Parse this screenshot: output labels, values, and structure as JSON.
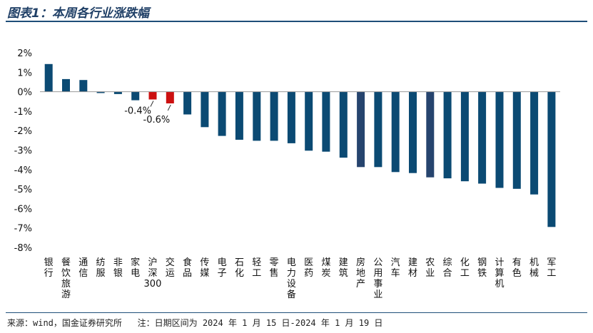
{
  "title": "图表1：本周各行业涨跌幅",
  "footer": {
    "source": "来源：wind，国金证券研究所",
    "note": "注：日期区间为 2024 年 1 月 15 日-2024 年 1 月 19 日"
  },
  "colors": {
    "bar": "#0b4a73",
    "highlight_bar": "#cc1010",
    "dark_bar": "#26446e",
    "axis": "#999999",
    "title": "#1f3f66"
  },
  "chart_data": {
    "type": "bar",
    "title": "本周各行业涨跌幅",
    "xlabel": "",
    "ylabel": "",
    "ylim": [
      -8,
      2
    ],
    "y_ticks": [
      "2%",
      "1%",
      "0%",
      "-1%",
      "-2%",
      "-3%",
      "-4%",
      "-5%",
      "-6%",
      "-7%",
      "-8%"
    ],
    "y_tick_values": [
      2,
      1,
      0,
      -1,
      -2,
      -3,
      -4,
      -5,
      -6,
      -7,
      -8
    ],
    "grid": false,
    "categories": [
      "银行",
      "餐饮旅游",
      "通信",
      "纺服",
      "非银",
      "家电",
      "沪深300",
      "交运",
      "食品",
      "传媒",
      "电子",
      "石化",
      "轻工",
      "零售",
      "电力设备",
      "医药",
      "煤炭",
      "建筑",
      "房地产",
      "公用事业",
      "汽车",
      "建材",
      "农业",
      "综合",
      "化工",
      "钢铁",
      "计算机",
      "有色",
      "机械",
      "军工"
    ],
    "values": [
      1.42,
      0.65,
      0.6,
      -0.07,
      -0.12,
      -0.44,
      -0.4,
      -0.6,
      -1.17,
      -1.82,
      -2.27,
      -2.47,
      -2.52,
      -2.52,
      -2.65,
      -3.03,
      -3.08,
      -3.39,
      -3.87,
      -3.87,
      -4.13,
      -4.18,
      -4.4,
      -4.45,
      -4.6,
      -4.72,
      -4.94,
      -4.99,
      -5.28,
      -6.95
    ],
    "highlight": [
      "沪深300",
      "交运"
    ],
    "data_labels": [
      {
        "category": "沪深300",
        "text": "-0.4%"
      },
      {
        "category": "交运",
        "text": "-0.6%"
      }
    ]
  }
}
